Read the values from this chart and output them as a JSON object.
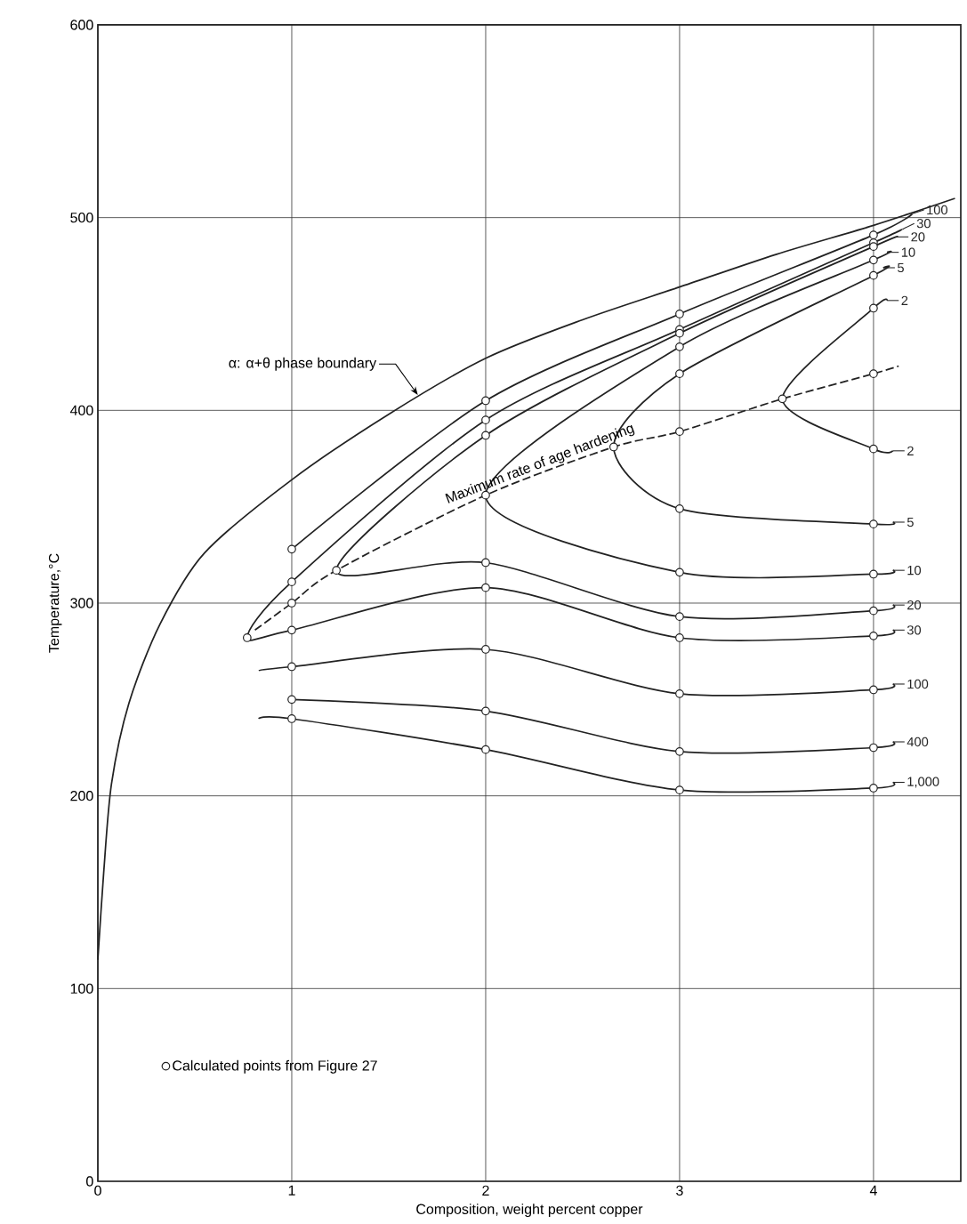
{
  "chart_data": {
    "type": "line",
    "xlabel": "Composition, weight percent copper",
    "ylabel": "Temperature,°C",
    "xlim": [
      0,
      4.45
    ],
    "ylim": [
      0,
      600
    ],
    "xticks": [
      0,
      1,
      2,
      3,
      4
    ],
    "yticks": [
      0,
      100,
      200,
      300,
      400,
      500,
      600
    ],
    "grid": true,
    "legend": "bottom left",
    "line_style": "solid",
    "marker": "none",
    "annotations": [
      {
        "text": "α: α+θ phase boundary",
        "x": 1.65,
        "y": 408
      },
      {
        "text": "Maximum rate of age hardening",
        "x": 2.3,
        "y": 367
      }
    ],
    "series": [
      {
        "color": "#222222",
        "x": [
          0,
          0.03,
          0.07,
          0.16,
          0.32,
          0.55,
          1,
          1.5,
          2,
          2.5,
          3,
          3.5,
          4,
          4.42
        ],
        "values": [
          115,
          160,
          206,
          248,
          289,
          326,
          364,
          398,
          427,
          447,
          464,
          481,
          496,
          510
        ]
      },
      {
        "name": "100",
        "color": "#222222",
        "x": [
          1,
          2,
          3,
          4,
          4.2
        ],
        "values": [
          328,
          405,
          450,
          491,
          502
        ]
      },
      {
        "name": "30",
        "color": "#222222",
        "x": [
          4.15,
          4,
          3,
          2,
          1,
          0.77,
          1,
          2,
          3,
          4,
          4.1
        ],
        "values": [
          494,
          487,
          442,
          395,
          311,
          282,
          286,
          308,
          282,
          283,
          286
        ]
      },
      {
        "name": "20",
        "color": "#222222",
        "x": [
          4.12,
          4,
          3,
          2,
          1.23,
          2,
          3,
          4,
          4.1
        ],
        "values": [
          490,
          485,
          440,
          387,
          317,
          321,
          293,
          296,
          299
        ]
      },
      {
        "name": "10",
        "color": "#222222",
        "x": [
          4.07,
          4,
          3,
          2,
          3,
          4,
          4.1
        ],
        "values": [
          482,
          478,
          433,
          356,
          316,
          315,
          317
        ]
      },
      {
        "name": "5",
        "color": "#222222",
        "x": [
          4.05,
          4,
          3,
          2.66,
          3,
          4,
          4.1
        ],
        "values": [
          474,
          470,
          419,
          381,
          349,
          341,
          342
        ]
      },
      {
        "name": "2",
        "color": "#222222",
        "x": [
          4.07,
          4,
          3.53,
          4,
          4.1
        ],
        "values": [
          457,
          453,
          406,
          380,
          379
        ]
      },
      {
        "name": "100",
        "color": "#222222",
        "x": [
          0.83,
          1,
          2,
          3,
          4,
          4.1
        ],
        "values": [
          265,
          267,
          276,
          253,
          255,
          258
        ]
      },
      {
        "name": "400",
        "color": "#222222",
        "x": [
          1,
          2,
          3,
          4,
          4.1
        ],
        "values": [
          250,
          244,
          223,
          225,
          228
        ]
      },
      {
        "name": "1,000",
        "color": "#222222",
        "x": [
          0.83,
          1,
          2,
          3,
          4,
          4.1
        ],
        "values": [
          240,
          240,
          224,
          203,
          204,
          207
        ]
      },
      {
        "color": "#222222",
        "line_style": "dashed",
        "x": [
          0.81,
          1,
          1.23,
          2,
          2.66,
          3,
          3.53,
          4,
          4.13
        ],
        "values": [
          286,
          300,
          317,
          356,
          381,
          389,
          406,
          419,
          423
        ]
      },
      {
        "type": "scatter",
        "name": "Calculated points from Figure 27",
        "color": "#222222",
        "marker": "circle",
        "x": [
          0.77,
          1.23,
          2.66,
          3.53,
          1,
          1,
          1,
          1,
          1,
          1,
          1,
          2,
          2,
          2,
          2,
          2,
          2,
          2,
          2,
          2,
          3,
          3,
          3,
          3,
          3,
          3,
          3,
          3,
          3,
          3,
          3,
          3,
          3,
          4,
          4,
          4,
          4,
          4,
          4,
          4,
          4,
          4,
          4,
          4,
          4,
          4,
          4,
          4
        ],
        "values": [
          282,
          317,
          381,
          406,
          328,
          311,
          300,
          286,
          267,
          250,
          240,
          405,
          395,
          387,
          356,
          321,
          308,
          276,
          244,
          224,
          450,
          442,
          440,
          433,
          419,
          389,
          349,
          316,
          293,
          282,
          253,
          223,
          203,
          491,
          487,
          485,
          478,
          470,
          453,
          419,
          380,
          341,
          315,
          296,
          283,
          255,
          225,
          204
        ]
      }
    ]
  }
}
